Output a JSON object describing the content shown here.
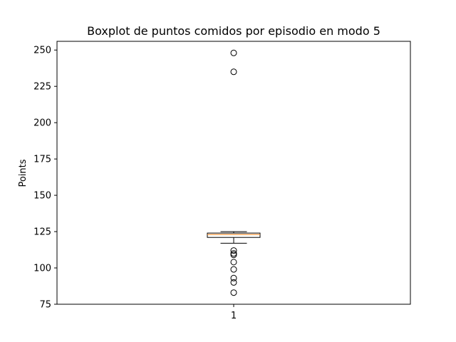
{
  "chart_data": {
    "type": "boxplot",
    "title": "Boxplot de puntos comidos por episodio en modo 5",
    "xlabel": "",
    "ylabel": "Points",
    "categories": [
      "1"
    ],
    "ylim": [
      75,
      256
    ],
    "yticks": [
      75,
      100,
      125,
      150,
      175,
      200,
      225,
      250
    ],
    "grid": false,
    "box": {
      "whisker_low": 117,
      "q1": 121,
      "median": 123,
      "q3": 124,
      "whisker_high": 125
    },
    "outliers": [
      248,
      235,
      112,
      110,
      109,
      104,
      99,
      93,
      90,
      83
    ],
    "colors": {
      "median": "#ff7f0e",
      "box": "#000000",
      "box_fill": "#ffffff"
    }
  }
}
